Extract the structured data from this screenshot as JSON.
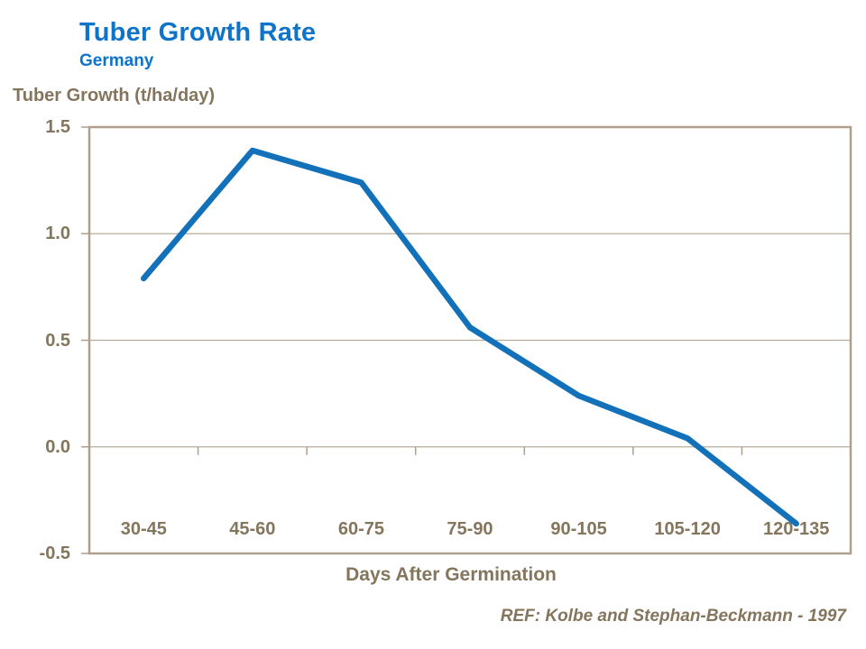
{
  "header": {
    "title": "Tuber Growth Rate",
    "subtitle": "Germany"
  },
  "ref_note": "REF: Kolbe and Stephan-Beckmann - 1997",
  "chart_data": {
    "type": "line",
    "title": "Tuber Growth Rate",
    "subtitle": "Germany",
    "xlabel": "Days After Germination",
    "ylabel": "Tuber Growth (t/ha/day)",
    "categories": [
      "30-45",
      "45-60",
      "60-75",
      "75-90",
      "90-105",
      "105-120",
      "120-135"
    ],
    "series": [
      {
        "name": "Tuber growth rate",
        "values": [
          0.79,
          1.39,
          1.24,
          0.56,
          0.24,
          0.04,
          -0.36
        ]
      }
    ],
    "ylim": [
      -0.5,
      1.5
    ],
    "ytick_labels": [
      "1.5",
      "1.0",
      "0.5",
      "0.0",
      "-0.5"
    ],
    "yticks": [
      1.5,
      1.0,
      0.5,
      0.0,
      -0.5
    ],
    "grid": "horizontal-only",
    "legend": "none",
    "colors": {
      "title_blue": "#0d74c9",
      "line_blue": "#1271b8",
      "text_brown": "#84755d",
      "plot_border": "#ae9f8e",
      "gridline": "#b6ab9c"
    }
  }
}
